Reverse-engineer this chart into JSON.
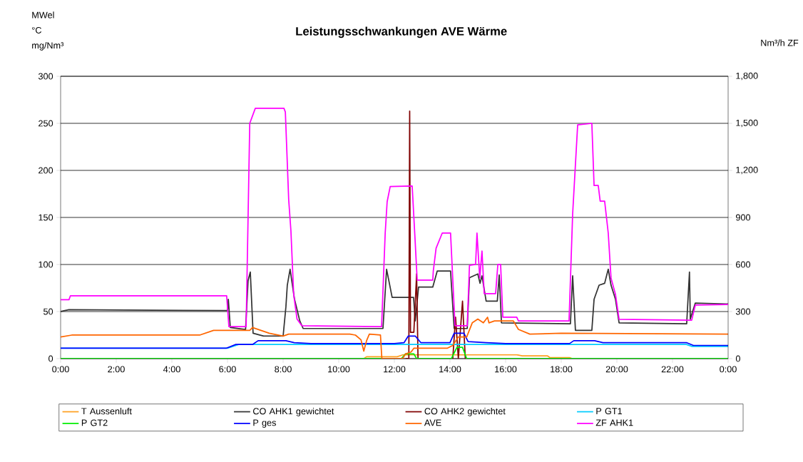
{
  "chart_data": {
    "type": "line",
    "title": "Leistungsschwankungen AVE Wärme",
    "ylabel": "MWel °C mg/Nm³",
    "y2label": "Nm³/h ZF",
    "xlim": [
      0,
      24
    ],
    "xticks": [
      {
        "value": 0,
        "label": "0:00"
      },
      {
        "value": 2,
        "label": "2:00"
      },
      {
        "value": 4,
        "label": "4:00"
      },
      {
        "value": 6,
        "label": "6:00"
      },
      {
        "value": 8,
        "label": "8:00"
      },
      {
        "value": 10,
        "label": "10:00"
      },
      {
        "value": 12,
        "label": "12:00"
      },
      {
        "value": 14,
        "label": "14:00"
      },
      {
        "value": 16,
        "label": "16:00"
      },
      {
        "value": 18,
        "label": "18:00"
      },
      {
        "value": 20,
        "label": "20:00"
      },
      {
        "value": 22,
        "label": "22:00"
      },
      {
        "value": 24,
        "label": "0:00"
      }
    ],
    "ylim": [
      0,
      300
    ],
    "yticks": [
      0,
      50,
      100,
      150,
      200,
      250,
      300
    ],
    "y2lim": [
      0,
      1800
    ],
    "y2ticks": [
      {
        "value": 0,
        "label": "0"
      },
      {
        "value": 300,
        "label": "300"
      },
      {
        "value": 600,
        "label": "600"
      },
      {
        "value": 900,
        "label": "900"
      },
      {
        "value": 1200,
        "label": "1,200"
      },
      {
        "value": 1500,
        "label": "1,500"
      },
      {
        "value": 1800,
        "label": "1,800"
      }
    ],
    "grid": "y",
    "legend": "bottom",
    "series": [
      {
        "name": "T Aussenluft",
        "color": "#ffa020",
        "x": [
          10.9,
          11.0,
          12.1,
          12.3,
          16.4,
          16.6,
          17.5,
          17.6,
          18.3,
          18.4
        ],
        "values": [
          0,
          2,
          2,
          4,
          4,
          3,
          3,
          1,
          1,
          0
        ]
      },
      {
        "name": "CO AHK1 gewichtet",
        "color": "#333333",
        "x": [
          0,
          0.3,
          6.0,
          6.03,
          6.1,
          6.65,
          6.74,
          6.82,
          6.92,
          7.3,
          8.0,
          8.1,
          8.15,
          8.25,
          8.41,
          8.6,
          8.72,
          11.59,
          11.72,
          11.8,
          11.92,
          12.69,
          12.75,
          12.87,
          13.38,
          13.54,
          14.02,
          14.15,
          14.62,
          14.7,
          15.0,
          15.08,
          15.15,
          15.3,
          15.7,
          15.77,
          15.85,
          18.33,
          18.41,
          18.51,
          19.1,
          19.18,
          19.36,
          19.56,
          19.69,
          19.79,
          19.95,
          20.08,
          22.51,
          22.61,
          22.64,
          22.82,
          24
        ],
        "values": [
          50,
          52,
          51,
          63,
          33,
          31,
          83,
          92,
          27,
          24,
          24,
          55,
          78,
          95,
          63,
          40,
          32,
          32,
          95,
          83,
          65,
          65,
          40,
          76,
          76,
          93,
          93,
          32,
          32,
          86,
          90,
          80,
          88,
          61,
          61,
          89,
          38,
          37,
          88,
          30,
          30,
          63,
          78,
          80,
          95,
          78,
          63,
          38,
          37,
          92,
          42,
          59,
          58
        ]
      },
      {
        "name": "CO AHK2 gewichtet",
        "color": "#800000",
        "x": [
          12.4,
          12.52,
          12.55,
          12.58,
          12.7,
          12.8,
          12.85,
          14.1,
          14.2,
          14.3,
          14.45,
          14.55
        ],
        "values": [
          0,
          0,
          263,
          28,
          28,
          90,
          0,
          0,
          44,
          0,
          61,
          0
        ]
      },
      {
        "name": "P GT1",
        "color": "#00ccff",
        "x": [
          0,
          6.0,
          6.4,
          22.5,
          22.7,
          24
        ],
        "values": [
          11,
          11,
          15,
          15,
          13,
          13
        ]
      },
      {
        "name": "P GT2",
        "color": "#00ee00",
        "x": [
          0,
          12.25,
          12.4,
          12.7,
          12.8,
          14.05,
          14.25,
          14.45,
          14.6,
          24
        ],
        "values": [
          0,
          0,
          5,
          5,
          0,
          0,
          12,
          12,
          0,
          0
        ]
      },
      {
        "name": "P ges",
        "color": "#0000ff",
        "x": [
          0,
          5.95,
          6.3,
          6.9,
          7.1,
          8.1,
          8.4,
          9.0,
          12.0,
          12.35,
          12.5,
          12.75,
          12.95,
          14.0,
          14.15,
          14.5,
          14.65,
          15.3,
          16.0,
          18.3,
          18.45,
          19.2,
          19.5,
          22.5,
          22.75,
          24
        ],
        "values": [
          11,
          11,
          15,
          15,
          19,
          19,
          17,
          16,
          16,
          17,
          24,
          24,
          17,
          17,
          27,
          27,
          18,
          17,
          16,
          16,
          19,
          19,
          17,
          17,
          14,
          14
        ]
      },
      {
        "name": "AVE",
        "color": "#ff6600",
        "x": [
          0,
          0.4,
          5.0,
          5.5,
          6.8,
          6.9,
          7.5,
          8.0,
          8.2,
          10.4,
          10.6,
          10.8,
          10.9,
          11.0,
          11.1,
          11.5,
          11.55,
          12.3,
          12.4,
          12.6,
          12.7,
          13.9,
          14.1,
          14.3,
          14.6,
          14.8,
          15.0,
          15.2,
          15.35,
          15.4,
          15.6,
          16.28,
          16.46,
          16.87,
          18.0,
          24
        ],
        "values": [
          23,
          25,
          25,
          30,
          30,
          33,
          27,
          24,
          26,
          26,
          25,
          20,
          8,
          19,
          26,
          25,
          0,
          0,
          5,
          7,
          11,
          11,
          14,
          23,
          23,
          38,
          42,
          38,
          44,
          38,
          40,
          40,
          31,
          26,
          27,
          26
        ]
      },
      {
        "name": "ZF AHK1",
        "color": "#ff00ff",
        "axis": "y2",
        "x": [
          0,
          0.3,
          0.35,
          5.97,
          6.05,
          6.67,
          6.8,
          7.0,
          8.03,
          8.08,
          8.2,
          8.28,
          8.38,
          8.5,
          8.67,
          11.54,
          11.67,
          11.74,
          11.85,
          12.64,
          12.74,
          12.82,
          13.38,
          13.4,
          13.5,
          13.72,
          14.02,
          14.18,
          14.62,
          14.7,
          14.92,
          14.97,
          15.07,
          15.15,
          15.23,
          15.64,
          15.72,
          15.82,
          15.9,
          16.4,
          16.46,
          18.28,
          18.41,
          18.59,
          19.1,
          19.18,
          19.33,
          19.4,
          19.56,
          19.69,
          19.79,
          19.95,
          20.08,
          22.69,
          22.82,
          24
        ],
        "values": [
          375,
          375,
          400,
          400,
          204,
          204,
          1500,
          1596,
          1596,
          1572,
          1014,
          816,
          408,
          252,
          210,
          204,
          800,
          1000,
          1097,
          1100,
          772,
          500,
          500,
          560,
          704,
          800,
          800,
          210,
          210,
          595,
          600,
          800,
          514,
          686,
          414,
          414,
          600,
          600,
          264,
          264,
          240,
          240,
          923,
          1490,
          1500,
          1104,
          1104,
          1004,
          1004,
          800,
          514,
          409,
          250,
          245,
          341,
          345
        ]
      }
    ]
  }
}
